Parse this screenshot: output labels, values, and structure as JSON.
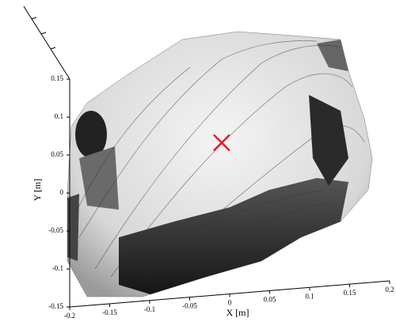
{
  "chart_data": {
    "type": "surface",
    "x_label": "X [m]",
    "y_label": "Y [m]",
    "xlim": [
      -0.2,
      0.2
    ],
    "ylim": [
      -0.15,
      0.15
    ],
    "xticks": [
      -0.2,
      -0.15,
      -0.1,
      -0.05,
      0,
      0.05,
      0.1,
      0.15,
      0.2
    ],
    "yticks": [
      -0.15,
      -0.1,
      -0.05,
      0,
      0.05,
      0.1,
      0.15
    ],
    "points": [
      {
        "x": -0.01,
        "y": 0.05
      }
    ],
    "marker_color": "#e8202a"
  }
}
